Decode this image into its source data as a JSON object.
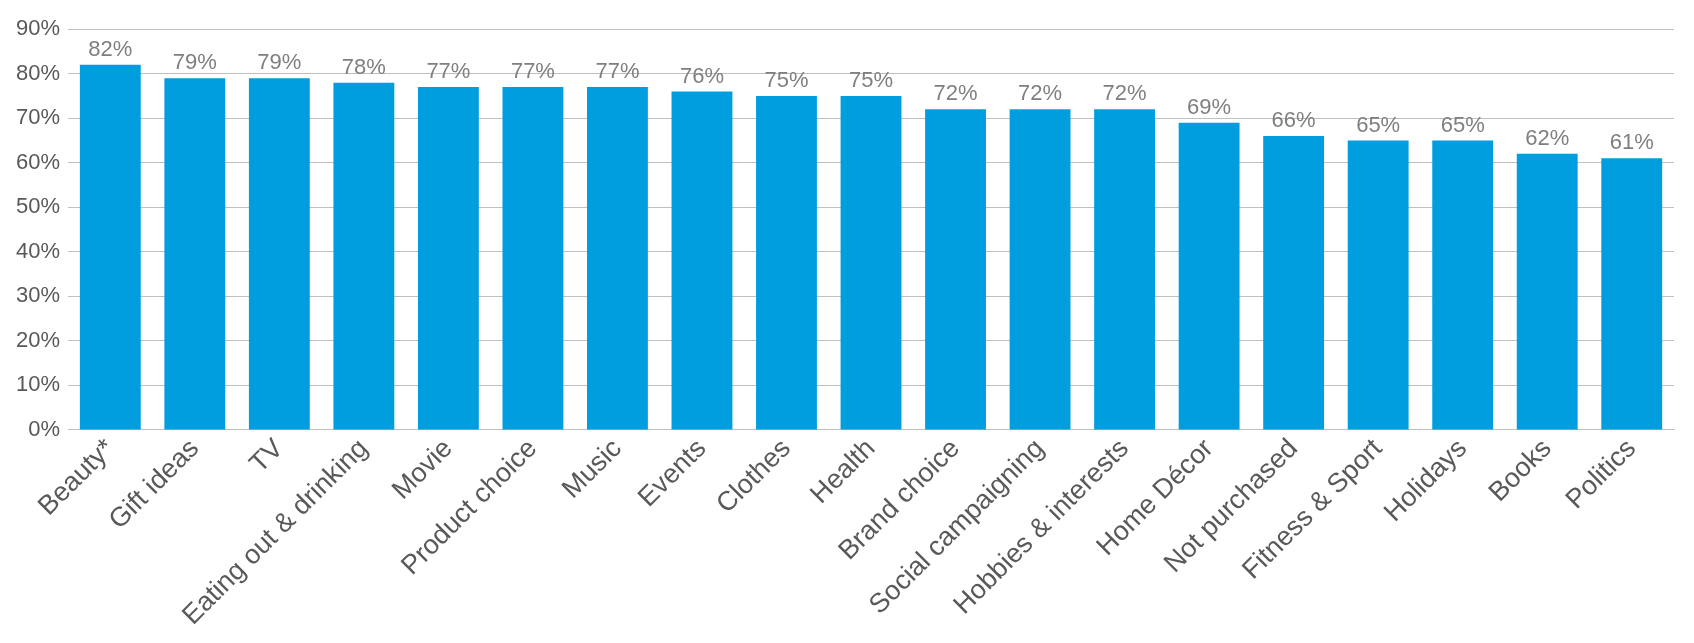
{
  "chart_data": {
    "type": "bar",
    "categories": [
      "Beauty*",
      "Gift ideas",
      "TV",
      "Eating out & drinking",
      "Movie",
      "Product choice",
      "Music",
      "Events",
      "Clothes",
      "Health",
      "Brand choice",
      "Social campaigning",
      "Hobbies & interests",
      "Home Décor",
      "Not purchased",
      "Fitness & Sport",
      "Holidays",
      "Books",
      "Politics"
    ],
    "values": [
      82,
      79,
      79,
      78,
      77,
      77,
      77,
      76,
      75,
      75,
      72,
      72,
      72,
      69,
      66,
      65,
      65,
      62,
      61
    ],
    "value_labels": [
      "82%",
      "79%",
      "79%",
      "78%",
      "77%",
      "77%",
      "77%",
      "76%",
      "75%",
      "75%",
      "72%",
      "72%",
      "72%",
      "69%",
      "66%",
      "65%",
      "65%",
      "62%",
      "61%"
    ],
    "color": "#009ddf",
    "ylim": [
      0,
      90
    ],
    "yticks": [
      {
        "value": 0,
        "label": "0%"
      },
      {
        "value": 10,
        "label": "10%"
      },
      {
        "value": 20,
        "label": "20%"
      },
      {
        "value": 30,
        "label": "30%"
      },
      {
        "value": 40,
        "label": "40%"
      },
      {
        "value": 50,
        "label": "50%"
      },
      {
        "value": 60,
        "label": "60%"
      },
      {
        "value": 70,
        "label": "70%"
      },
      {
        "value": 80,
        "label": "80%"
      },
      {
        "value": 90,
        "label": "90%"
      }
    ],
    "grid": "y"
  }
}
